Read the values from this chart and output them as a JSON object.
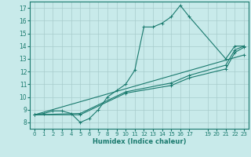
{
  "xlabel": "Humidex (Indice chaleur)",
  "bg_color": "#c8eaea",
  "line_color": "#1a7a6e",
  "grid_color": "#a8cccc",
  "xlim": [
    -0.5,
    23.5
  ],
  "ylim": [
    7.5,
    17.5
  ],
  "xticks": [
    0,
    1,
    2,
    3,
    4,
    5,
    6,
    7,
    8,
    9,
    10,
    11,
    12,
    13,
    14,
    15,
    16,
    17,
    19,
    20,
    21,
    22,
    23
  ],
  "yticks": [
    8,
    9,
    10,
    11,
    12,
    13,
    14,
    15,
    16,
    17
  ],
  "series": [
    {
      "x": [
        0,
        1,
        2,
        3,
        4,
        5,
        6,
        7,
        8,
        9,
        10,
        11,
        12,
        13,
        14,
        15,
        16,
        17,
        21,
        22,
        23
      ],
      "y": [
        8.6,
        8.7,
        8.9,
        8.9,
        8.7,
        8.0,
        8.3,
        9.0,
        10.0,
        10.5,
        11.0,
        12.1,
        15.5,
        15.5,
        15.8,
        16.3,
        17.2,
        16.3,
        13.0,
        14.0,
        14.0
      ]
    },
    {
      "x": [
        0,
        5,
        10,
        15,
        17,
        21,
        22,
        23
      ],
      "y": [
        8.6,
        8.6,
        10.3,
        10.9,
        11.5,
        12.2,
        13.5,
        13.9
      ]
    },
    {
      "x": [
        0,
        5,
        10,
        15,
        17,
        21,
        22,
        23
      ],
      "y": [
        8.6,
        8.7,
        10.4,
        11.1,
        11.7,
        12.5,
        13.7,
        14.0
      ]
    },
    {
      "x": [
        0,
        23
      ],
      "y": [
        8.6,
        13.3
      ]
    }
  ]
}
